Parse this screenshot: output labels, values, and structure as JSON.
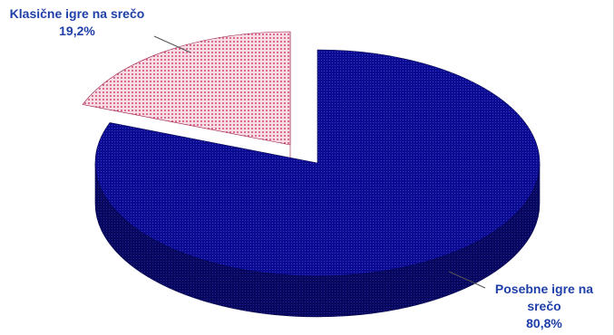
{
  "chart_data": {
    "type": "pie",
    "style": "3d-exploded",
    "slices": [
      {
        "label": "Posebne igre na srečo",
        "label_lines": [
          "Posebne igre na",
          "srečo"
        ],
        "value": 80.8,
        "value_text": "80,8%",
        "color": "#0a0a8c",
        "pattern": "dotted-grid"
      },
      {
        "label": "Klasične igre na srečo",
        "label_lines": [
          "Klasične igre na srečo"
        ],
        "value": 19.2,
        "value_text": "19,2%",
        "color": "#b0184a",
        "pattern": "dotted-pink"
      }
    ],
    "legend": "none",
    "label_color": "#1f3fa8"
  }
}
